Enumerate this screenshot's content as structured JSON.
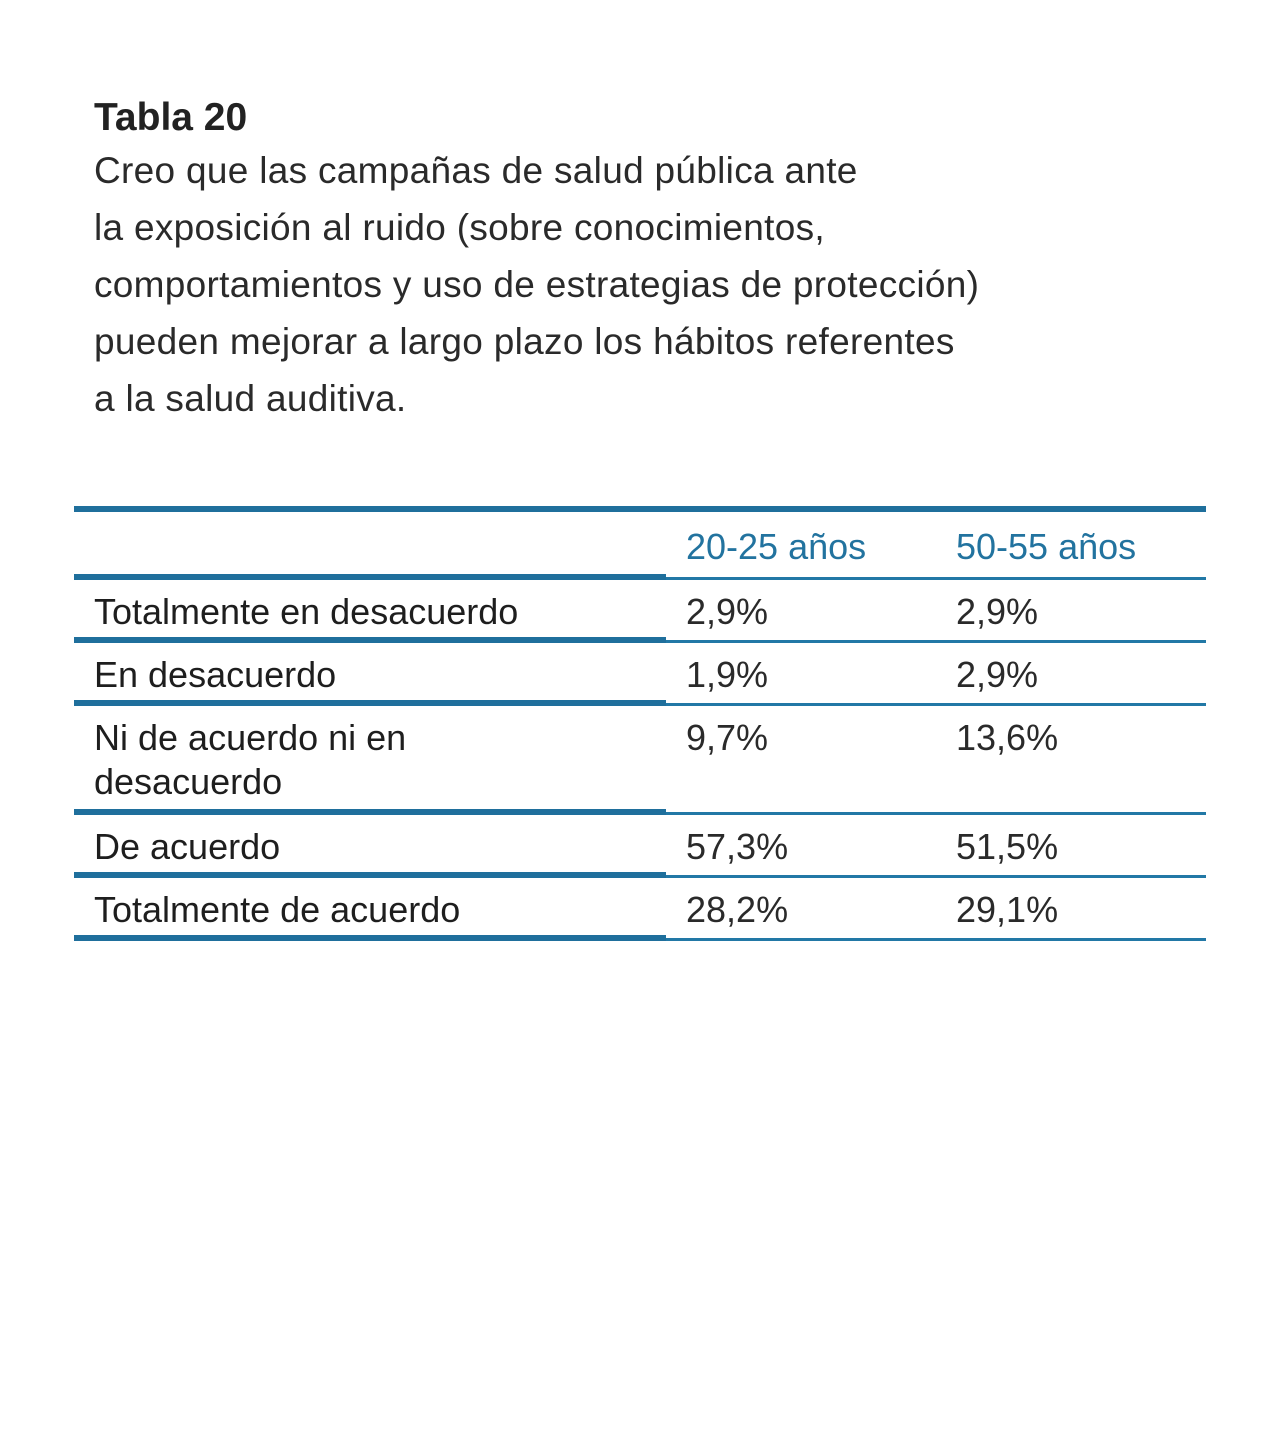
{
  "caption": {
    "label": "Tabla 20",
    "lines": [
      "Creo que las campañas de salud pública ante",
      "la exposición al ruido (sobre conocimientos,",
      "comportamientos y uso de estrategias de protección)",
      "pueden mejorar a largo plazo los hábitos referentes",
      "a la salud auditiva."
    ]
  },
  "table": {
    "headers": [
      "",
      "20-25 años",
      "50-55 años"
    ],
    "rows": [
      {
        "label": "Totalmente en desacuerdo",
        "v1": "2,9%",
        "v2": "2,9%"
      },
      {
        "label": "En desacuerdo",
        "v1": "1,9%",
        "v2": "2,9%"
      },
      {
        "label": "Ni de acuerdo ni en desacuerdo",
        "v1": "9,7%",
        "v2": "13,6%"
      },
      {
        "label": "De acuerdo",
        "v1": "57,3%",
        "v2": "51,5%"
      },
      {
        "label": "Totalmente de acuerdo",
        "v1": "28,2%",
        "v2": "29,1%"
      }
    ]
  },
  "colors": {
    "accent": "#1f6f9c",
    "header_text": "#22739f",
    "body_text": "#1e1e1e"
  }
}
